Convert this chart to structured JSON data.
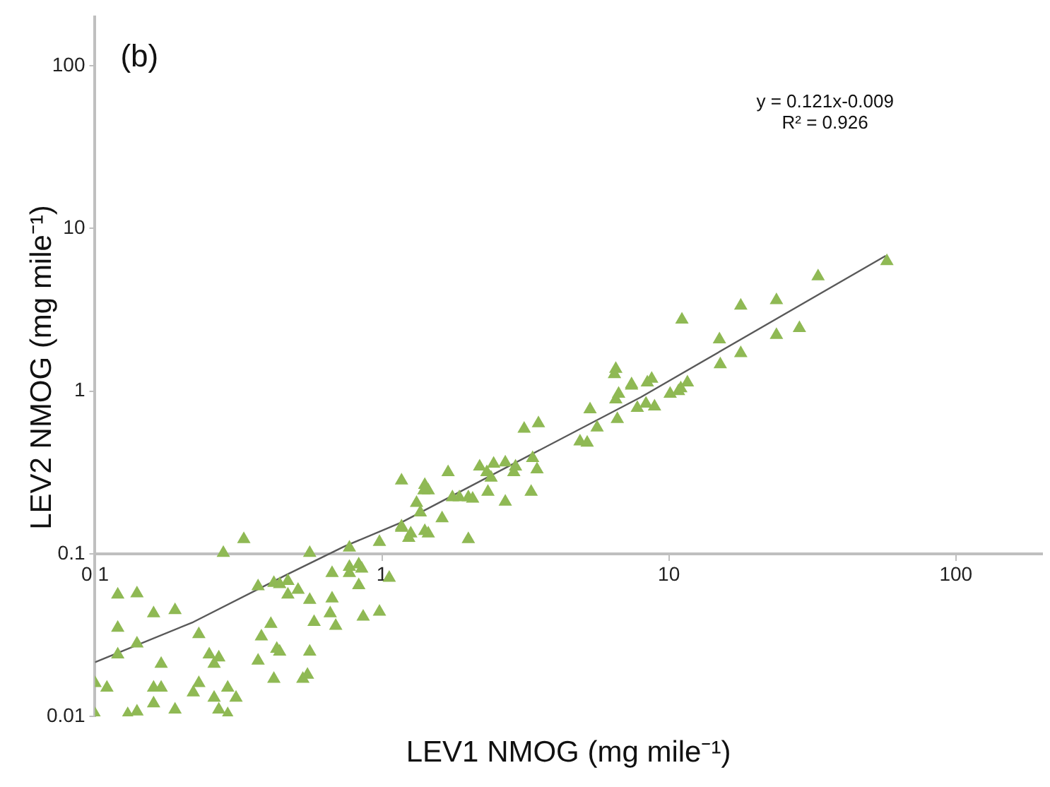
{
  "chart_data": {
    "type": "scatter",
    "xlabel": "LEV1 NMOG (mg mile⁻¹)",
    "ylabel": "LEV2 NMOG (mg mile⁻¹)",
    "annotations": [
      "(b)",
      "y = 0.121x-0.009",
      "R² = 0.926"
    ],
    "log": "xy",
    "grid": false,
    "legend": false,
    "xlim": [
      0.1,
      200
    ],
    "xticks": [
      0.1,
      1,
      10,
      100
    ],
    "ylim": [
      0.01,
      200
    ],
    "yticks": [
      0.01,
      0.1,
      1,
      10,
      100
    ],
    "series": [
      {
        "color": "#8fb954",
        "marker": "triangle",
        "x": [
          0.33,
          0.28,
          0.56,
          0.77,
          0.98,
          1.17,
          1.24,
          0.67,
          0.77,
          0.77,
          0.83,
          0.85,
          1.06,
          0.83,
          0.12,
          0.14,
          0.37,
          0.42,
          0.44,
          0.47,
          0.51,
          0.47,
          0.56,
          0.67,
          0.16,
          0.19,
          0.66,
          0.86,
          0.98,
          0.58,
          0.69,
          0.41,
          0.23,
          0.12,
          0.38,
          0.14,
          0.12,
          0.25,
          0.27,
          0.43,
          0.44,
          0.56,
          0.17,
          0.26,
          0.37,
          0.1,
          0.11,
          0.42,
          0.53,
          0.55,
          0.23,
          0.16,
          0.17,
          0.22,
          0.29,
          0.26,
          0.31,
          0.16,
          0.19,
          0.27,
          0.29,
          0.13,
          0.14,
          0.1,
          1.17,
          1.26,
          1.41,
          1.45,
          1.62,
          2.0,
          1.36,
          1.32,
          1.17,
          1.41,
          1.45,
          1.4,
          1.7,
          1.76,
          1.86,
          2.0,
          2.07,
          2.19,
          2.32,
          2.4,
          2.45,
          2.34,
          2.69,
          2.69,
          2.92,
          2.88,
          3.35,
          3.47,
          3.31,
          3.13,
          3.51,
          4.9,
          5.19,
          5.31,
          5.62,
          6.53,
          6.68,
          6.61,
          7.41,
          7.76,
          6.53,
          6.46,
          7.41,
          8.32,
          8.91,
          8.41,
          8.71,
          10.1,
          10.8,
          11.0,
          11.6,
          11.1,
          15.0,
          15.1,
          17.8,
          17.8,
          23.7,
          23.7,
          28.5,
          33.1,
          57.5
        ],
        "values": [
          0.123,
          0.101,
          0.101,
          0.109,
          0.118,
          0.147,
          0.125,
          0.076,
          0.083,
          0.076,
          0.086,
          0.081,
          0.071,
          0.064,
          0.056,
          0.057,
          0.063,
          0.066,
          0.065,
          0.068,
          0.06,
          0.056,
          0.052,
          0.053,
          0.043,
          0.045,
          0.043,
          0.041,
          0.044,
          0.038,
          0.036,
          0.037,
          0.032,
          0.035,
          0.031,
          0.028,
          0.024,
          0.024,
          0.023,
          0.026,
          0.025,
          0.025,
          0.021,
          0.021,
          0.022,
          0.016,
          0.015,
          0.017,
          0.017,
          0.018,
          0.016,
          0.015,
          0.015,
          0.014,
          0.015,
          0.013,
          0.013,
          0.012,
          0.011,
          0.011,
          0.0103,
          0.0103,
          0.0107,
          0.0103,
          0.144,
          0.133,
          0.138,
          0.133,
          0.165,
          0.123,
          0.179,
          0.205,
          0.282,
          0.265,
          0.245,
          0.245,
          0.317,
          0.222,
          0.222,
          0.222,
          0.218,
          0.343,
          0.317,
          0.293,
          0.357,
          0.24,
          0.364,
          0.209,
          0.343,
          0.317,
          0.387,
          0.33,
          0.24,
          0.586,
          0.634,
          0.49,
          0.481,
          0.773,
          0.597,
          0.888,
          0.961,
          0.673,
          1.08,
          0.788,
          1.37,
          1.27,
          1.1,
          0.837,
          0.804,
          1.13,
          1.19,
          0.961,
          1.0,
          1.04,
          1.13,
          2.75,
          2.08,
          1.46,
          1.71,
          3.35,
          3.62,
          2.21,
          2.44,
          5.07,
          6.3
        ]
      },
      {
        "type": "line",
        "marker": "none",
        "color": "#595959",
        "x": [
          0.1,
          0.22,
          0.47,
          0.74,
          1.17,
          8.0,
          57
        ],
        "values": [
          0.0215,
          0.038,
          0.075,
          0.111,
          0.156,
          0.92,
          6.8
        ]
      }
    ]
  }
}
